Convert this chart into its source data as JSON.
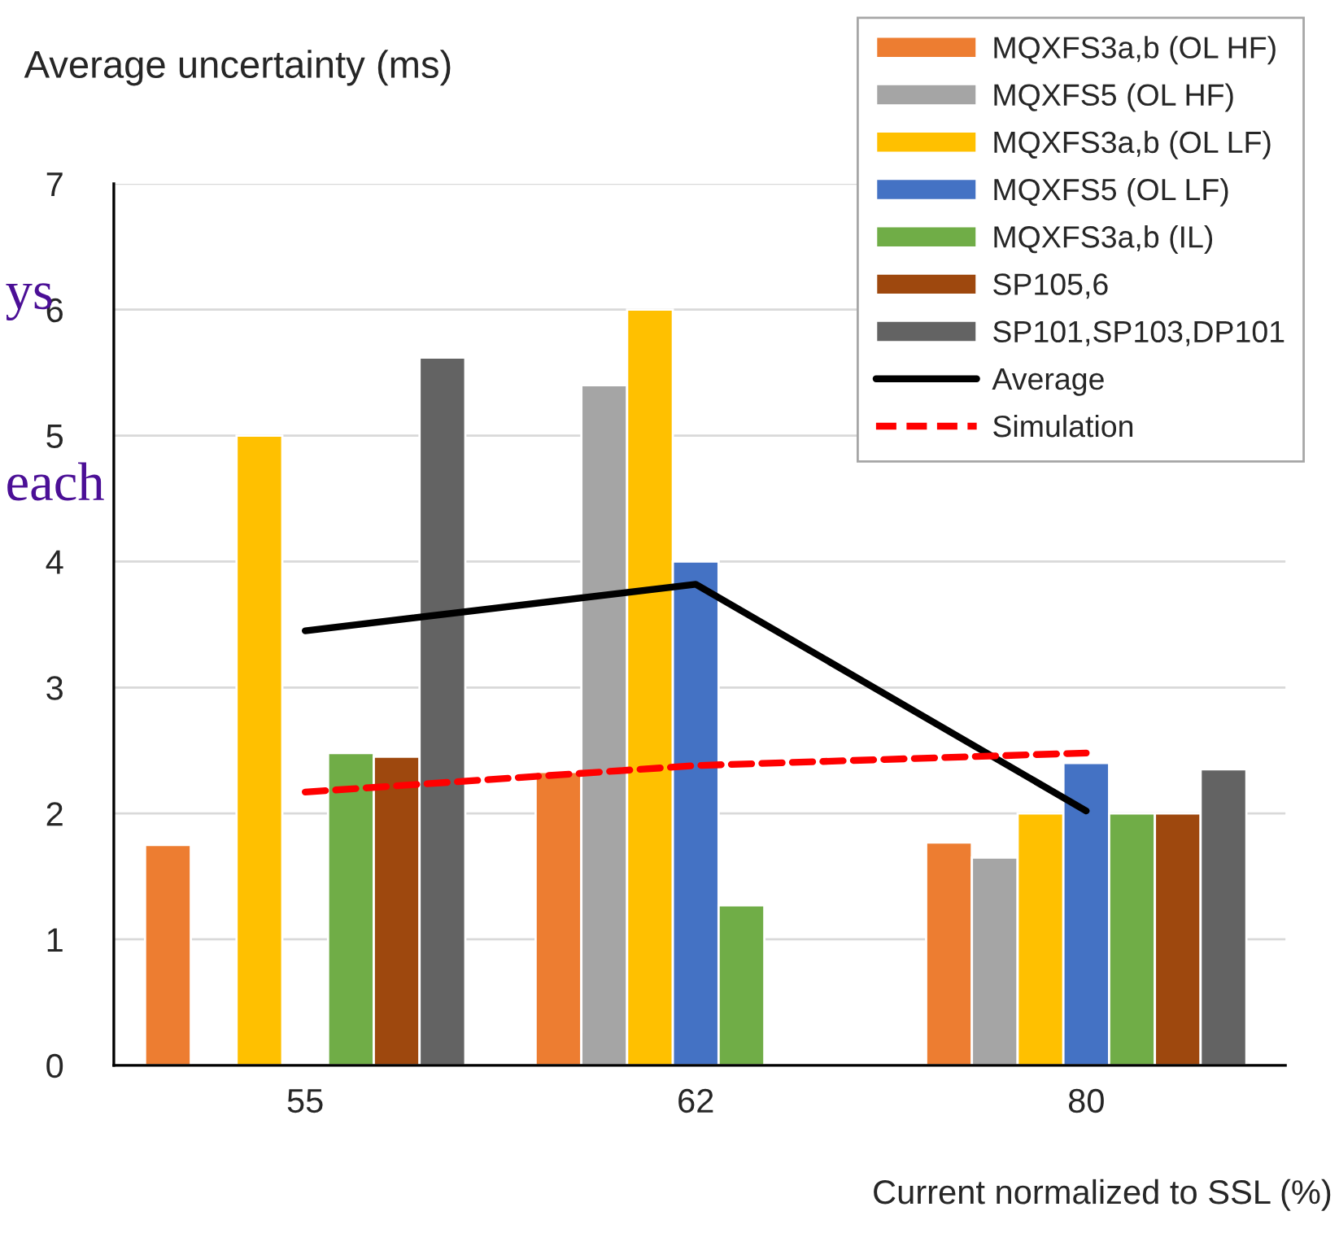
{
  "chart_data": {
    "type": "bar",
    "ylabel": "Average uncertainty (ms)",
    "xlabel": "Current normalized to SSL (%)",
    "categories": [
      "55",
      "62",
      "80"
    ],
    "series": [
      {
        "name": "MQXFS3a,b (OL HF)",
        "color": "#ed7d31",
        "values": [
          1.75,
          2.33,
          1.77
        ]
      },
      {
        "name": "MQXFS5 (OL HF)",
        "color": "#a5a5a5",
        "values": [
          null,
          5.4,
          1.65
        ]
      },
      {
        "name": "MQXFS3a,b (OL LF)",
        "color": "#ffc000",
        "values": [
          5.0,
          6.0,
          2.0
        ]
      },
      {
        "name": "MQXFS5 (OL LF)",
        "color": "#4472c4",
        "values": [
          null,
          4.0,
          2.4
        ]
      },
      {
        "name": "MQXFS3a,b (IL)",
        "color": "#70ad47",
        "values": [
          2.48,
          1.27,
          2.0
        ]
      },
      {
        "name": "SP105,6",
        "color": "#9e480e",
        "values": [
          2.45,
          null,
          2.0
        ]
      },
      {
        "name": "SP101,SP103,DP101",
        "color": "#636363",
        "values": [
          5.62,
          null,
          2.35
        ]
      },
      {
        "name": "Average",
        "type": "line",
        "color": "#000000",
        "line_style": "solid",
        "values": [
          3.45,
          3.82,
          2.02
        ]
      },
      {
        "name": "Simulation",
        "type": "line",
        "color": "#ff0000",
        "line_style": "dashed",
        "values": [
          2.17,
          2.38,
          2.48
        ]
      }
    ],
    "ylim": [
      0,
      7
    ],
    "yticks": [
      0,
      1,
      2,
      3,
      4,
      5,
      6,
      7
    ],
    "grid": "y",
    "legend": "top right",
    "annotations": [
      "ys",
      "each"
    ]
  }
}
